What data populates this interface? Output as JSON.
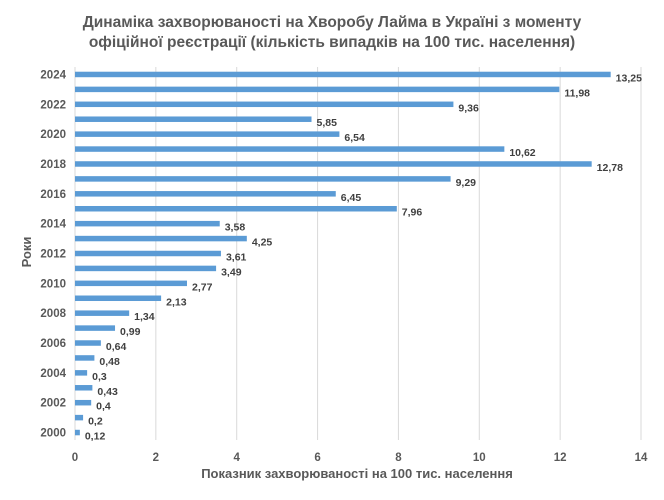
{
  "chart_data": {
    "type": "bar",
    "orientation": "horizontal",
    "title": "Динаміка захворюваності на Хворобу Лайма в Україні з моменту офіційної реєстрації (кількість випадків на 100 тис. населення)",
    "title_lines": [
      "Динаміка захворюваності  на Хворобу Лайма в Україні з моменту",
      "офіційної реєстрації (кількість випадків на 100 тис. населення)"
    ],
    "xlabel": "Показник захворюваності на 100 тис. населення",
    "ylabel": "Роки",
    "xlim": [
      0,
      14
    ],
    "xticks": [
      0,
      2,
      4,
      6,
      8,
      10,
      12,
      14
    ],
    "grid": "vertical",
    "bar_color": "#5b9bd5",
    "categories": [
      "2000",
      "2001",
      "2002",
      "2003",
      "2004",
      "2005",
      "2006",
      "2007",
      "2008",
      "2009",
      "2010",
      "2011",
      "2012",
      "2013",
      "2014",
      "2015",
      "2016",
      "2017",
      "2018",
      "2019",
      "2020",
      "2021",
      "2022",
      "2023",
      "2024"
    ],
    "category_labels_shown": [
      "2000",
      "",
      "2002",
      "",
      "2004",
      "",
      "2006",
      "",
      "2008",
      "",
      "2010",
      "",
      "2012",
      "",
      "2014",
      "",
      "2016",
      "",
      "2018",
      "",
      "2020",
      "",
      "2022",
      "",
      "2024"
    ],
    "values": [
      0.12,
      0.2,
      0.4,
      0.43,
      0.3,
      0.48,
      0.64,
      0.99,
      1.34,
      2.13,
      2.77,
      3.49,
      3.61,
      4.25,
      3.58,
      7.96,
      6.45,
      9.29,
      12.78,
      10.62,
      6.54,
      5.85,
      9.36,
      11.98,
      13.25
    ],
    "data_labels": [
      "0,12",
      "0,2",
      "0,4",
      "0,43",
      "0,3",
      "0,48",
      "0,64",
      "0,99",
      "1,34",
      "2,13",
      "2,77",
      "3,49",
      "3,61",
      "4,25",
      "3,58",
      "7,96",
      "6,45",
      "9,29",
      "12,78",
      "10,62",
      "6,54",
      "5,85",
      "9,36",
      "11,98",
      "13,25"
    ]
  }
}
